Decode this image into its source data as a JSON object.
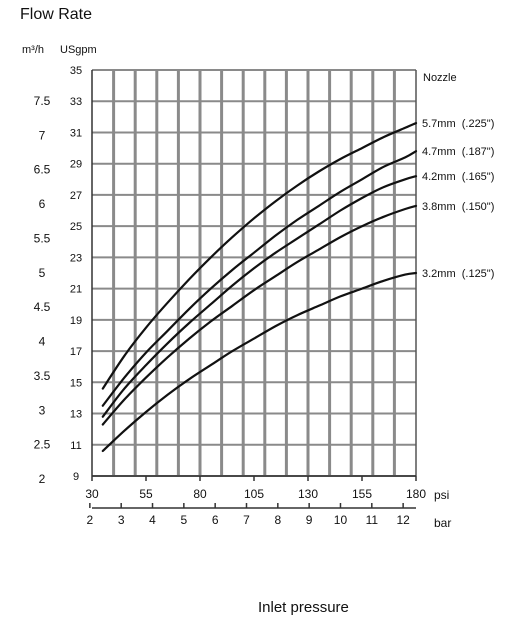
{
  "title": "Flow Rate",
  "left_unit_label": "m³/h",
  "right_unit_label": "USgpm",
  "legend_title": "Nozzle",
  "psi_label": "psi",
  "bar_label": "bar",
  "xlabel": "Inlet pressure",
  "chart_data": {
    "type": "line",
    "title": "Flow Rate",
    "xlabel": "Inlet pressure",
    "x_unit": "psi",
    "y_unit": "USgpm",
    "xlim": [
      30,
      180
    ],
    "ylim": [
      9,
      35
    ],
    "grid": true,
    "legend_position": "right",
    "psi_ticks": [
      30,
      55,
      80,
      105,
      130,
      155,
      180
    ],
    "usgpm_ticks": [
      9,
      11,
      13,
      15,
      17,
      19,
      21,
      23,
      25,
      27,
      29,
      31,
      33,
      35
    ],
    "usgpm_tick_labels": [
      "9",
      "11",
      "13",
      "15",
      "17",
      "19",
      "21",
      "23",
      "25",
      "27",
      "29",
      "31",
      "33",
      "35"
    ],
    "bar_ticks": [
      2,
      3,
      4,
      5,
      6,
      7,
      8,
      9,
      10,
      11,
      12
    ],
    "m3h_ticks": [
      2,
      2.5,
      3,
      3.5,
      4,
      4.5,
      5,
      5.5,
      6,
      6.5,
      7,
      7.5
    ],
    "m3h_tick_labels": [
      "2",
      "2.5",
      "3",
      "3.5",
      "4",
      "4.5",
      "5",
      "5.5",
      "6",
      "6.5",
      "7",
      "7.5"
    ],
    "series": [
      {
        "name": "5.7mm  (.225\")",
        "x": [
          35,
          45,
          55,
          65,
          75,
          85,
          95,
          105,
          115,
          125,
          135,
          145,
          155,
          165,
          175,
          180
        ],
        "y": [
          14.6,
          16.7,
          18.5,
          20.1,
          21.6,
          23.0,
          24.3,
          25.5,
          26.6,
          27.6,
          28.5,
          29.3,
          30.0,
          30.7,
          31.3,
          31.6
        ]
      },
      {
        "name": "4.7mm  (.187\")",
        "x": [
          35,
          45,
          55,
          65,
          75,
          85,
          95,
          105,
          115,
          125,
          135,
          145,
          155,
          165,
          175,
          180
        ],
        "y": [
          13.5,
          15.3,
          16.9,
          18.3,
          19.7,
          21.0,
          22.2,
          23.3,
          24.4,
          25.4,
          26.3,
          27.2,
          28.0,
          28.8,
          29.4,
          29.8
        ]
      },
      {
        "name": "4.2mm  (.165\")",
        "x": [
          35,
          45,
          55,
          65,
          75,
          85,
          95,
          105,
          115,
          125,
          135,
          145,
          155,
          165,
          175,
          180
        ],
        "y": [
          12.8,
          14.6,
          16.1,
          17.5,
          18.8,
          20.0,
          21.2,
          22.3,
          23.3,
          24.2,
          25.1,
          26.0,
          26.8,
          27.5,
          28.0,
          28.2
        ]
      },
      {
        "name": "3.8mm  (.150\")",
        "x": [
          35,
          45,
          55,
          65,
          75,
          85,
          95,
          105,
          115,
          125,
          135,
          145,
          155,
          165,
          175,
          180
        ],
        "y": [
          12.3,
          13.9,
          15.3,
          16.6,
          17.8,
          18.9,
          19.9,
          20.9,
          21.8,
          22.7,
          23.5,
          24.3,
          25.0,
          25.6,
          26.1,
          26.3
        ]
      },
      {
        "name": "3.2mm  (.125\")",
        "x": [
          35,
          45,
          55,
          65,
          75,
          85,
          95,
          105,
          115,
          125,
          135,
          145,
          155,
          165,
          175,
          180
        ],
        "y": [
          10.6,
          11.9,
          13.1,
          14.2,
          15.2,
          16.1,
          17.0,
          17.8,
          18.6,
          19.3,
          19.9,
          20.5,
          21.0,
          21.5,
          21.9,
          22.0
        ]
      }
    ]
  }
}
